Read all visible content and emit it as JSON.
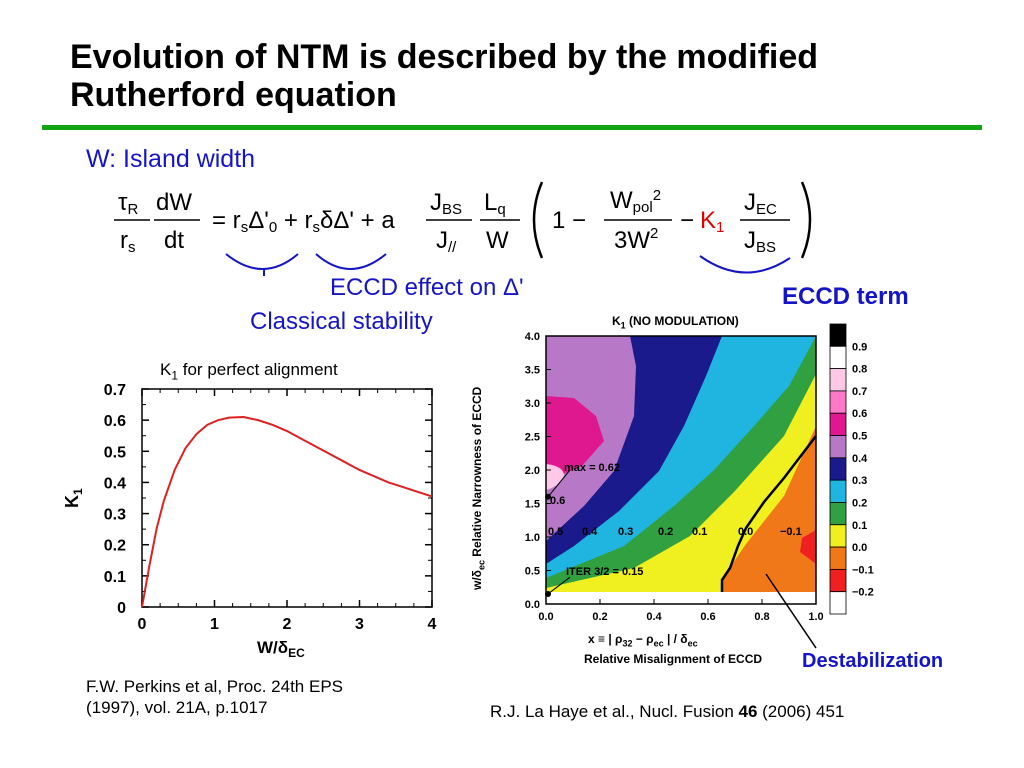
{
  "slide": {
    "title_line1": "Evolution of NTM is described by the modified",
    "title_line2": "Rutherford equation",
    "accent_color": "#12a412",
    "note_color": "#1414c8"
  },
  "equation": {
    "label_w": "W: Island width",
    "eccd_delta_note": "ECCD effect on Δ'",
    "classical_note": "Classical stability",
    "eccd_term_label": "ECCD term",
    "k1_color": "#e00000"
  },
  "left_plot": {
    "caption": "K",
    "caption_sub": "1",
    "caption_rest": " for perfect alignment",
    "ylabel": "K",
    "ylabel_sub": "1",
    "xlabel": "W/δ",
    "xlabel_sub": "EC",
    "citation_line1": "F.W. Perkins et al,  Proc. 24th EPS",
    "citation_line2": "(1997), vol. 21A, p.1017"
  },
  "right_plot": {
    "title": "K",
    "title_sub": "1",
    "title_rest": " (NO MODULATION)",
    "ylabel": "w/δ",
    "ylabel_sub": "ec",
    "ylabel_rest": " Relative Narrowness of ECCD",
    "xlabel_line1": "x ≡ | ρ",
    "xlabel_sub1": "32",
    "xlabel_mid": " − ρ",
    "xlabel_sub2": "ec",
    "xlabel_end": " | / δ",
    "xlabel_sub3": "ec",
    "xlabel_line2": "Relative Misalignment of ECCD",
    "max_label": "max = 0.62",
    "iter_label": "ITER 3/2 = 0.15",
    "destab_label": "Destabilization",
    "citation_pre": "R.J. La Haye et al., Nucl. Fusion ",
    "citation_vol": "46",
    "citation_post": " (2006) 451",
    "contour_labels": [
      "0.5",
      "0.4",
      "0.3",
      "0.2",
      "0.1",
      "0.0",
      "−0.1",
      "0.6"
    ]
  },
  "chart_data": [
    {
      "type": "line",
      "title": "K1 for perfect alignment",
      "xlabel": "W/δEC",
      "ylabel": "K1",
      "xlim": [
        0,
        4
      ],
      "ylim": [
        0,
        0.7
      ],
      "xticks": [
        "0",
        "1",
        "2",
        "3",
        "4"
      ],
      "yticks": [
        "0",
        "0.1",
        "0.2",
        "0.3",
        "0.4",
        "0.5",
        "0.6",
        "0.7"
      ],
      "series": [
        {
          "color": "#e02020",
          "x": [
            0,
            0.1,
            0.2,
            0.3,
            0.45,
            0.6,
            0.75,
            0.9,
            1.05,
            1.2,
            1.4,
            1.6,
            1.8,
            2.0,
            2.2,
            2.4,
            2.6,
            2.8,
            3.0,
            3.2,
            3.4,
            3.6,
            3.8,
            4.0
          ],
          "y": [
            0,
            0.13,
            0.25,
            0.34,
            0.44,
            0.51,
            0.555,
            0.585,
            0.6,
            0.608,
            0.61,
            0.6,
            0.585,
            0.565,
            0.54,
            0.515,
            0.49,
            0.465,
            0.44,
            0.42,
            0.4,
            0.385,
            0.37,
            0.355
          ]
        }
      ]
    },
    {
      "type": "heatmap",
      "title": "K1 (NO MODULATION)",
      "xlabel": "x ≡ |ρ32 − ρec| / δec  Relative Misalignment of ECCD",
      "ylabel": "w/δec Relative Narrowness of ECCD",
      "xlim": [
        0,
        1
      ],
      "ylim": [
        0,
        4
      ],
      "xticks": [
        "0.0",
        "0.2",
        "0.4",
        "0.6",
        "0.8",
        "1.0"
      ],
      "yticks": [
        "0.0",
        "0.5",
        "1.0",
        "1.5",
        "2.0",
        "2.5",
        "3.0",
        "3.5",
        "4.0"
      ],
      "colorbar": {
        "ticks": [
          "0.9",
          "0.8",
          "0.7",
          "0.6",
          "0.5",
          "0.4",
          "0.3",
          "0.2",
          "0.1",
          "0.0",
          "−0.1",
          "−0.2"
        ],
        "colors": [
          "#000000",
          "#ffffff",
          "#ffc8e6",
          "#ff78c8",
          "#e01890",
          "#b878c8",
          "#1a1a8c",
          "#20b4e0",
          "#30a040",
          "#f0f020",
          "#f07818",
          "#f02020",
          "#ffffff"
        ]
      },
      "annotations": [
        "max = 0.62",
        "ITER 3/2 = 0.15"
      ]
    }
  ]
}
